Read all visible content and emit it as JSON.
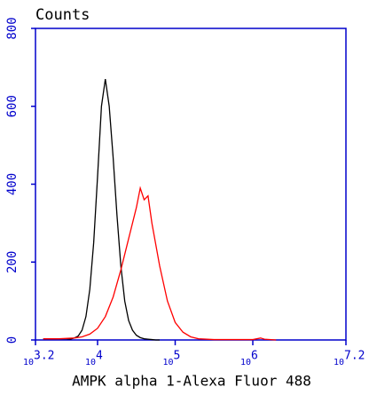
{
  "chart_data": {
    "type": "line",
    "title": "Counts",
    "x_label": "AMPK alpha 1-Alexa Fluor 488",
    "xlim": [
      3.2,
      7.2
    ],
    "xticks": [
      {
        "value": 3.2,
        "label": "10",
        "exponent": "3.2"
      },
      {
        "value": 4,
        "label": "10",
        "exponent": "4"
      },
      {
        "value": 5,
        "label": "10",
        "exponent": "5"
      },
      {
        "value": 6,
        "label": "10",
        "exponent": "6"
      },
      {
        "value": 7.2,
        "label": "10",
        "exponent": "7.2"
      }
    ],
    "ylim": [
      0,
      800
    ],
    "yticks": [
      0,
      200,
      400,
      600,
      800
    ],
    "axis_color": "#0000cc",
    "series": [
      {
        "color": "#000000",
        "x": [
          3.3,
          3.6,
          3.65,
          3.7,
          3.75,
          3.8,
          3.85,
          3.9,
          3.95,
          4.0,
          4.05,
          4.1,
          4.15,
          4.2,
          4.25,
          4.3,
          4.35,
          4.4,
          4.45,
          4.5,
          4.55,
          4.6,
          4.65,
          4.7,
          4.75,
          4.8
        ],
        "values": [
          3,
          3,
          2,
          5,
          10,
          25,
          60,
          130,
          250,
          420,
          600,
          670,
          600,
          470,
          320,
          190,
          100,
          50,
          25,
          12,
          6,
          3,
          2,
          1,
          0,
          0
        ]
      },
      {
        "color": "#ff0000",
        "x": [
          3.3,
          3.5,
          3.7,
          3.8,
          3.9,
          4.0,
          4.1,
          4.2,
          4.3,
          4.4,
          4.5,
          4.55,
          4.6,
          4.65,
          4.7,
          4.8,
          4.9,
          5.0,
          5.1,
          5.2,
          5.3,
          5.5,
          6.0,
          6.1,
          6.15,
          6.3
        ],
        "values": [
          3,
          3,
          5,
          8,
          15,
          30,
          60,
          110,
          180,
          260,
          340,
          390,
          360,
          370,
          300,
          190,
          100,
          45,
          20,
          8,
          3,
          1,
          1,
          5,
          2,
          0
        ]
      }
    ]
  }
}
